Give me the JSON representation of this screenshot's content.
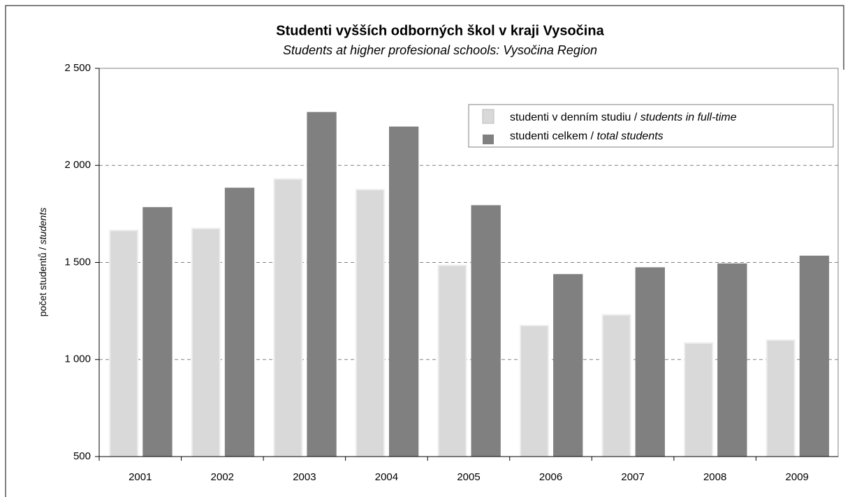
{
  "chart_data": {
    "type": "bar",
    "title": "Studenti  vyšších odborných škol v kraji Vysočina",
    "subtitle": "Students at higher profesional schools: Vysočina Region",
    "y_label": "počet studentů / students",
    "categories": [
      "2001",
      "2002",
      "2003",
      "2004",
      "2005",
      "2006",
      "2007",
      "2008",
      "2009"
    ],
    "series": [
      {
        "name": "studenti v denním studiu / students in full-time",
        "color": "#d9d9d9",
        "values": [
          1665,
          1675,
          1930,
          1875,
          1485,
          1175,
          1230,
          1085,
          1100
        ]
      },
      {
        "name": "studenti  celkem / total students",
        "color": "#808080",
        "values": [
          1785,
          1885,
          2275,
          2200,
          1795,
          1440,
          1475,
          1495,
          1535
        ]
      }
    ],
    "ylim": [
      500,
      2500
    ],
    "yticks": [
      500,
      {
        "value": 1000,
        "label": "1 000"
      },
      {
        "value": 1500,
        "label": "1 500"
      },
      {
        "value": 2000,
        "label": "2 000"
      },
      {
        "value": 2500,
        "label": "2 500"
      }
    ],
    "grid": true,
    "legend": "upper right"
  }
}
